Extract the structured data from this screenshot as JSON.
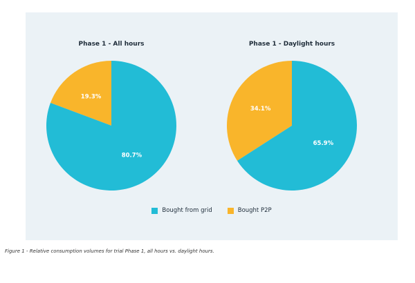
{
  "colors": {
    "grid": "#22bcd6",
    "p2p": "#f9b52b",
    "panel_background": "#ebf2f6"
  },
  "legend": [
    {
      "label": "Bought from grid",
      "color": "#22bcd6"
    },
    {
      "label": "Bought P2P",
      "color": "#f9b52b"
    }
  ],
  "chart_data": [
    {
      "type": "pie",
      "title": "Phase 1 - All hours",
      "series": [
        {
          "name": "Bought from grid",
          "value": 80.7,
          "label": "80.7%",
          "color": "#22bcd6"
        },
        {
          "name": "Bought P2P",
          "value": 19.3,
          "label": "19.3%",
          "color": "#f9b52b"
        }
      ]
    },
    {
      "type": "pie",
      "title": "Phase 1 - Daylight hours",
      "series": [
        {
          "name": "Bought from grid",
          "value": 65.9,
          "label": "65.9%",
          "color": "#22bcd6"
        },
        {
          "name": "Bought P2P",
          "value": 34.1,
          "label": "34.1%",
          "color": "#f9b52b"
        }
      ]
    }
  ],
  "caption": "Figure 1 - Relative consumption volumes for trial Phase 1, all hours vs. daylight hours."
}
